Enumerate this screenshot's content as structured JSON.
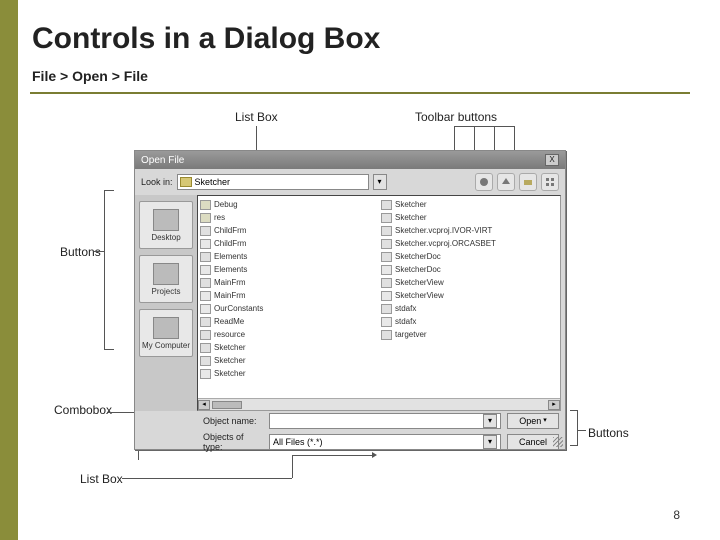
{
  "slide": {
    "title": "Controls in a Dialog Box",
    "breadcrumb": "File > Open > File",
    "pageNumber": "8",
    "accentColor": "#8a8d3a"
  },
  "callouts": {
    "listboxTop": "List Box",
    "toolbarTop": "Toolbar buttons",
    "buttonsLeft": "Buttons",
    "comboboxLeft": "Combobox",
    "listboxBottom": "List Box",
    "buttonsRight": "Buttons"
  },
  "dialog": {
    "title": "Open File",
    "close": "X",
    "lookInLabel": "Look in:",
    "lookInValue": "Sketcher",
    "dropGlyph": "▾",
    "places": [
      "Desktop",
      "Projects",
      "My Computer"
    ],
    "toolbarIcons": [
      "back-icon",
      "up-icon",
      "new-folder-icon",
      "views-icon"
    ],
    "filesLeft": [
      {
        "icon": "folder",
        "name": "Debug"
      },
      {
        "icon": "folder",
        "name": "res"
      },
      {
        "icon": "doc",
        "name": "ChildFrm"
      },
      {
        "icon": "h",
        "name": "ChildFrm"
      },
      {
        "icon": "doc",
        "name": "Elements"
      },
      {
        "icon": "h",
        "name": "Elements"
      },
      {
        "icon": "doc",
        "name": "MainFrm"
      },
      {
        "icon": "h",
        "name": "MainFrm"
      },
      {
        "icon": "h",
        "name": "OurConstants"
      },
      {
        "icon": "doc",
        "name": "ReadMe"
      },
      {
        "icon": "doc",
        "name": "resource"
      },
      {
        "icon": "doc",
        "name": "Sketcher"
      },
      {
        "icon": "doc",
        "name": "Sketcher"
      },
      {
        "icon": "h",
        "name": "Sketcher"
      }
    ],
    "filesRight": [
      {
        "icon": "doc",
        "name": "Sketcher"
      },
      {
        "icon": "doc",
        "name": "Sketcher"
      },
      {
        "icon": "doc",
        "name": "Sketcher.vcproj.IVOR-VIRT"
      },
      {
        "icon": "doc",
        "name": "Sketcher.vcproj.ORCASBET"
      },
      {
        "icon": "doc",
        "name": "SketcherDoc"
      },
      {
        "icon": "h",
        "name": "SketcherDoc"
      },
      {
        "icon": "doc",
        "name": "SketcherView"
      },
      {
        "icon": "h",
        "name": "SketcherView"
      },
      {
        "icon": "doc",
        "name": "stdafx"
      },
      {
        "icon": "h",
        "name": "stdafx"
      },
      {
        "icon": "doc",
        "name": "targetver"
      }
    ],
    "objectNameLabel": "Object name:",
    "objectNameValue": "",
    "objectTypeLabel": "Objects of type:",
    "objectTypeValue": "All Files (*.*)",
    "openLabel": "Open",
    "cancelLabel": "Cancel",
    "openDrop": "▾",
    "scrollLeft": "◂",
    "scrollRight": "▸"
  },
  "colors": {
    "dialogBg": "#d8d8d8",
    "titlebarFrom": "#9a9a9a",
    "titlebarTo": "#7a7a7a",
    "fieldBg": "#ffffff",
    "border": "#888888"
  }
}
